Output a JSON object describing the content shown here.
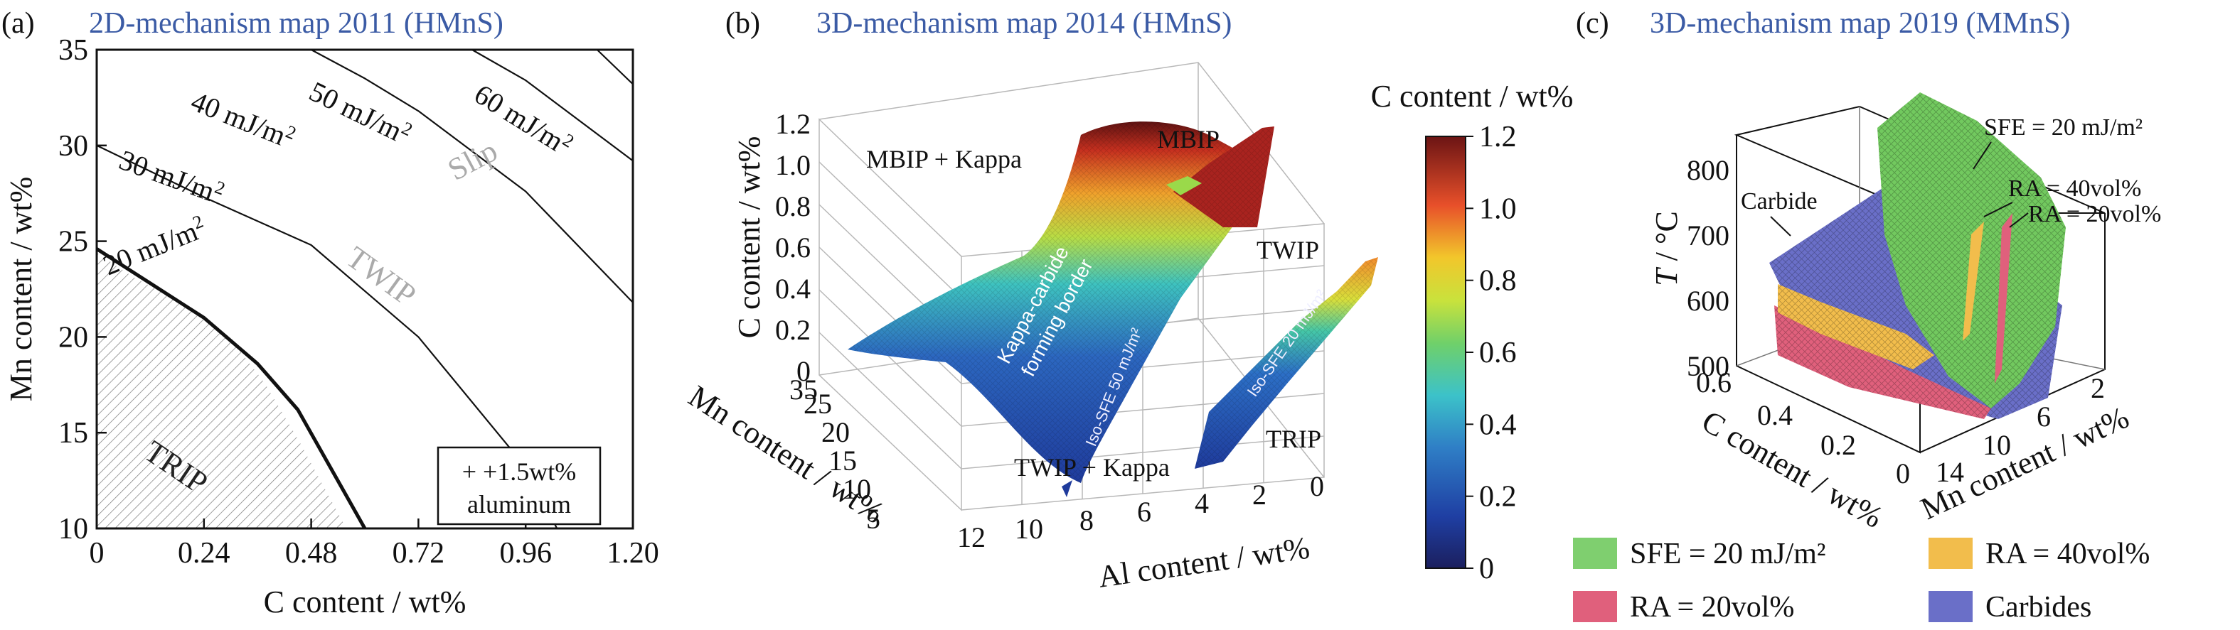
{
  "panels": {
    "a": {
      "letter": "(a)",
      "title": "2D-mechanism map 2011 (HMnS)",
      "xlabel": "C content / wt%",
      "ylabel": "Mn content / wt%",
      "note_line1": "+ +1.5wt%",
      "note_line2": "aluminum"
    },
    "b": {
      "letter": "(b)",
      "title": "3D-mechanism map 2014 (HMnS)",
      "zlabel": "C content / wt%",
      "mnlabel": "Mn content / wt%",
      "allabel": "Al content / wt%",
      "z_ticks": [
        "0",
        "0.2",
        "0.4",
        "0.6",
        "0.8",
        "1.0",
        "1.2"
      ],
      "mn_ticks": [
        "35",
        "25",
        "20",
        "15",
        "10",
        "5"
      ],
      "al_ticks": [
        "12",
        "10",
        "8",
        "6",
        "4",
        "2",
        "0"
      ],
      "regions": {
        "mbip_kappa": "MBIP + Kappa",
        "mbip": "MBIP",
        "twip": "TWIP",
        "trip": "TRIP",
        "twip_kappa": "TWIP + Kappa",
        "kappa_border_1": "Kappa-carbide",
        "kappa_border_2": "forming border",
        "iso_sfe_50": "Iso-SFE 50 mJ/m²",
        "iso_sfe_20": "Iso-SFE 20 mJ/m²"
      },
      "colorbar": {
        "title": "C content / wt%",
        "ticks": [
          "0",
          "0.2",
          "0.4",
          "0.6",
          "0.8",
          "1.0",
          "1.2"
        ]
      }
    },
    "c": {
      "letter": "(c)",
      "title": "3D-mechanism map 2019 (MMnS)",
      "tlabel_T": "T",
      "tlabel_rest": " / °C",
      "clabel": "C content / wt%",
      "mnlabel": "Mn content / wt%",
      "t_ticks": [
        "500",
        "600",
        "700",
        "800"
      ],
      "c_ticks": [
        "0.6",
        "0.4",
        "0.2",
        "0"
      ],
      "mn_ticks": [
        "14",
        "10",
        "6",
        "2"
      ],
      "annotations": {
        "sfe": "SFE = 20 mJ/m²",
        "ra40": "RA = 40vol%",
        "ra20": "RA = 20vol%",
        "carbide": "Carbide"
      },
      "legend": [
        {
          "label": "SFE = 20 mJ/m²",
          "color": "#7fcf6f"
        },
        {
          "label": "RA = 40vol%",
          "color": "#f2bd4c"
        },
        {
          "label": "RA = 20vol%",
          "color": "#e0607c"
        },
        {
          "label": "Carbides",
          "color": "#6a6fc8"
        }
      ]
    }
  },
  "chart_data": [
    {
      "type": "line",
      "title": "2D-mechanism map 2011 (HMnS)",
      "xlabel": "C content / wt%",
      "ylabel": "Mn content / wt%",
      "xlim": [
        0,
        1.2
      ],
      "ylim": [
        10,
        35
      ],
      "x_ticks": [
        "0",
        "0.24",
        "0.48",
        "0.72",
        "0.96",
        "1.20"
      ],
      "y_ticks": [
        "10",
        "15",
        "20",
        "25",
        "30",
        "35"
      ],
      "series": [
        {
          "name": "20 mJ/m²",
          "x": [
            0,
            0.12,
            0.24,
            0.36,
            0.45,
            0.6
          ],
          "y": [
            24.6,
            22.8,
            21.0,
            18.6,
            16.2,
            10.0
          ]
        },
        {
          "name": "30 mJ/m²",
          "x": [
            0,
            0.24,
            0.48,
            0.72,
            0.96,
            1.03
          ],
          "y": [
            30.0,
            27.3,
            24.8,
            20.0,
            13.2,
            10.0
          ]
        },
        {
          "name": "40 mJ/m²",
          "x": [
            0.48,
            0.6,
            0.72,
            0.96,
            1.2
          ],
          "y": [
            35.0,
            33.5,
            31.8,
            27.6,
            21.8
          ]
        },
        {
          "name": "50 mJ/m²",
          "x": [
            0.84,
            0.96,
            1.2
          ],
          "y": [
            35.0,
            33.4,
            29.2
          ]
        },
        {
          "name": "60 mJ/m²",
          "x": [
            1.12,
            1.2
          ],
          "y": [
            35.0,
            33.2
          ]
        }
      ],
      "regions": [
        "TRIP",
        "TWIP",
        "Slip"
      ]
    },
    {
      "type": "heatmap",
      "title": "3D-mechanism map 2014 (HMnS)",
      "xlabel": "Al content / wt%",
      "ylabel": "Mn content / wt%",
      "zlabel": "C content / wt%",
      "xlim": [
        0,
        12
      ],
      "ylim": [
        5,
        35
      ],
      "zlim": [
        0,
        1.2
      ],
      "colorbar_range": [
        0,
        1.2
      ],
      "regions": [
        "MBIP + Kappa",
        "MBIP",
        "TWIP",
        "TRIP",
        "TWIP + Kappa"
      ]
    },
    {
      "type": "area",
      "title": "3D-mechanism map 2019 (MMnS)",
      "xlabel": "Mn content / wt%",
      "ylabel": "C content / wt%",
      "zlabel": "T / °C",
      "xlim": [
        2,
        14
      ],
      "ylim": [
        0,
        0.6
      ],
      "zlim": [
        500,
        800
      ],
      "series": [
        {
          "name": "SFE = 20 mJ/m²"
        },
        {
          "name": "RA = 40vol%"
        },
        {
          "name": "RA = 20vol%"
        },
        {
          "name": "Carbides"
        }
      ]
    }
  ]
}
